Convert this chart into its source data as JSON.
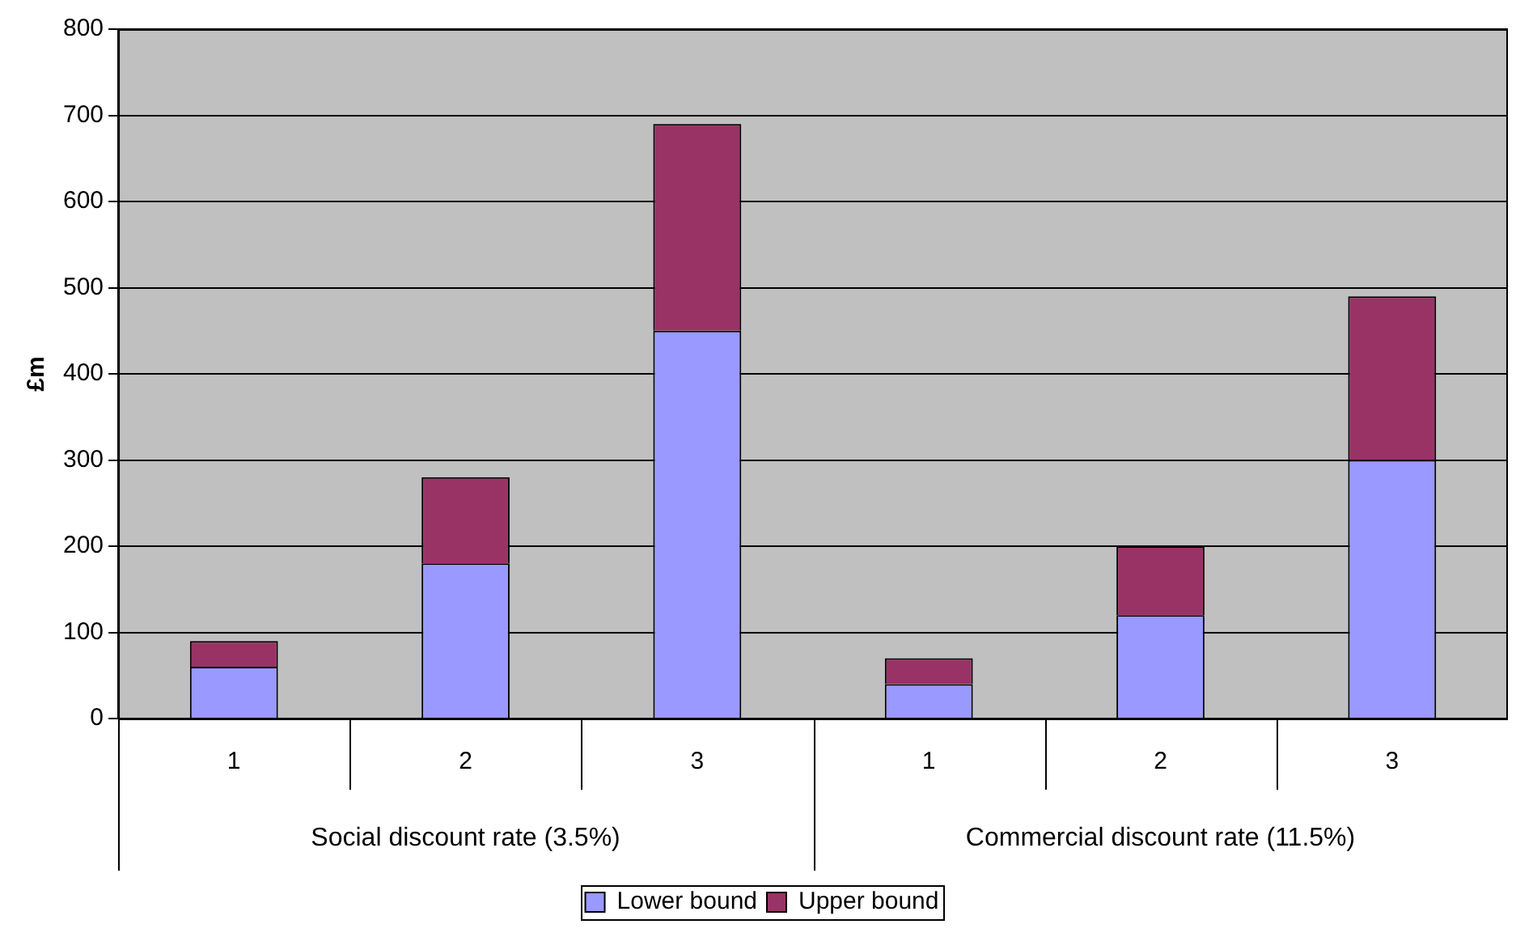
{
  "chart_data": {
    "type": "bar",
    "stacked": true,
    "ylabel": "£m",
    "categories": [
      "1",
      "2",
      "3",
      "1",
      "2",
      "3"
    ],
    "series": [
      {
        "name": "Lower bound",
        "color": "#9999ff",
        "values": [
          60,
          180,
          450,
          40,
          120,
          300
        ]
      },
      {
        "name": "Upper bound",
        "color": "#993366",
        "values": [
          30,
          100,
          240,
          30,
          80,
          190
        ]
      }
    ],
    "annotations": [
      "Social discount rate (3.5%)",
      "Commercial discount rate (11.5%)"
    ],
    "ylim": [
      0,
      800
    ],
    "yticks": [
      0,
      100,
      200,
      300,
      400,
      500,
      600,
      700,
      800
    ],
    "grid": "y",
    "legend": "bottom"
  }
}
